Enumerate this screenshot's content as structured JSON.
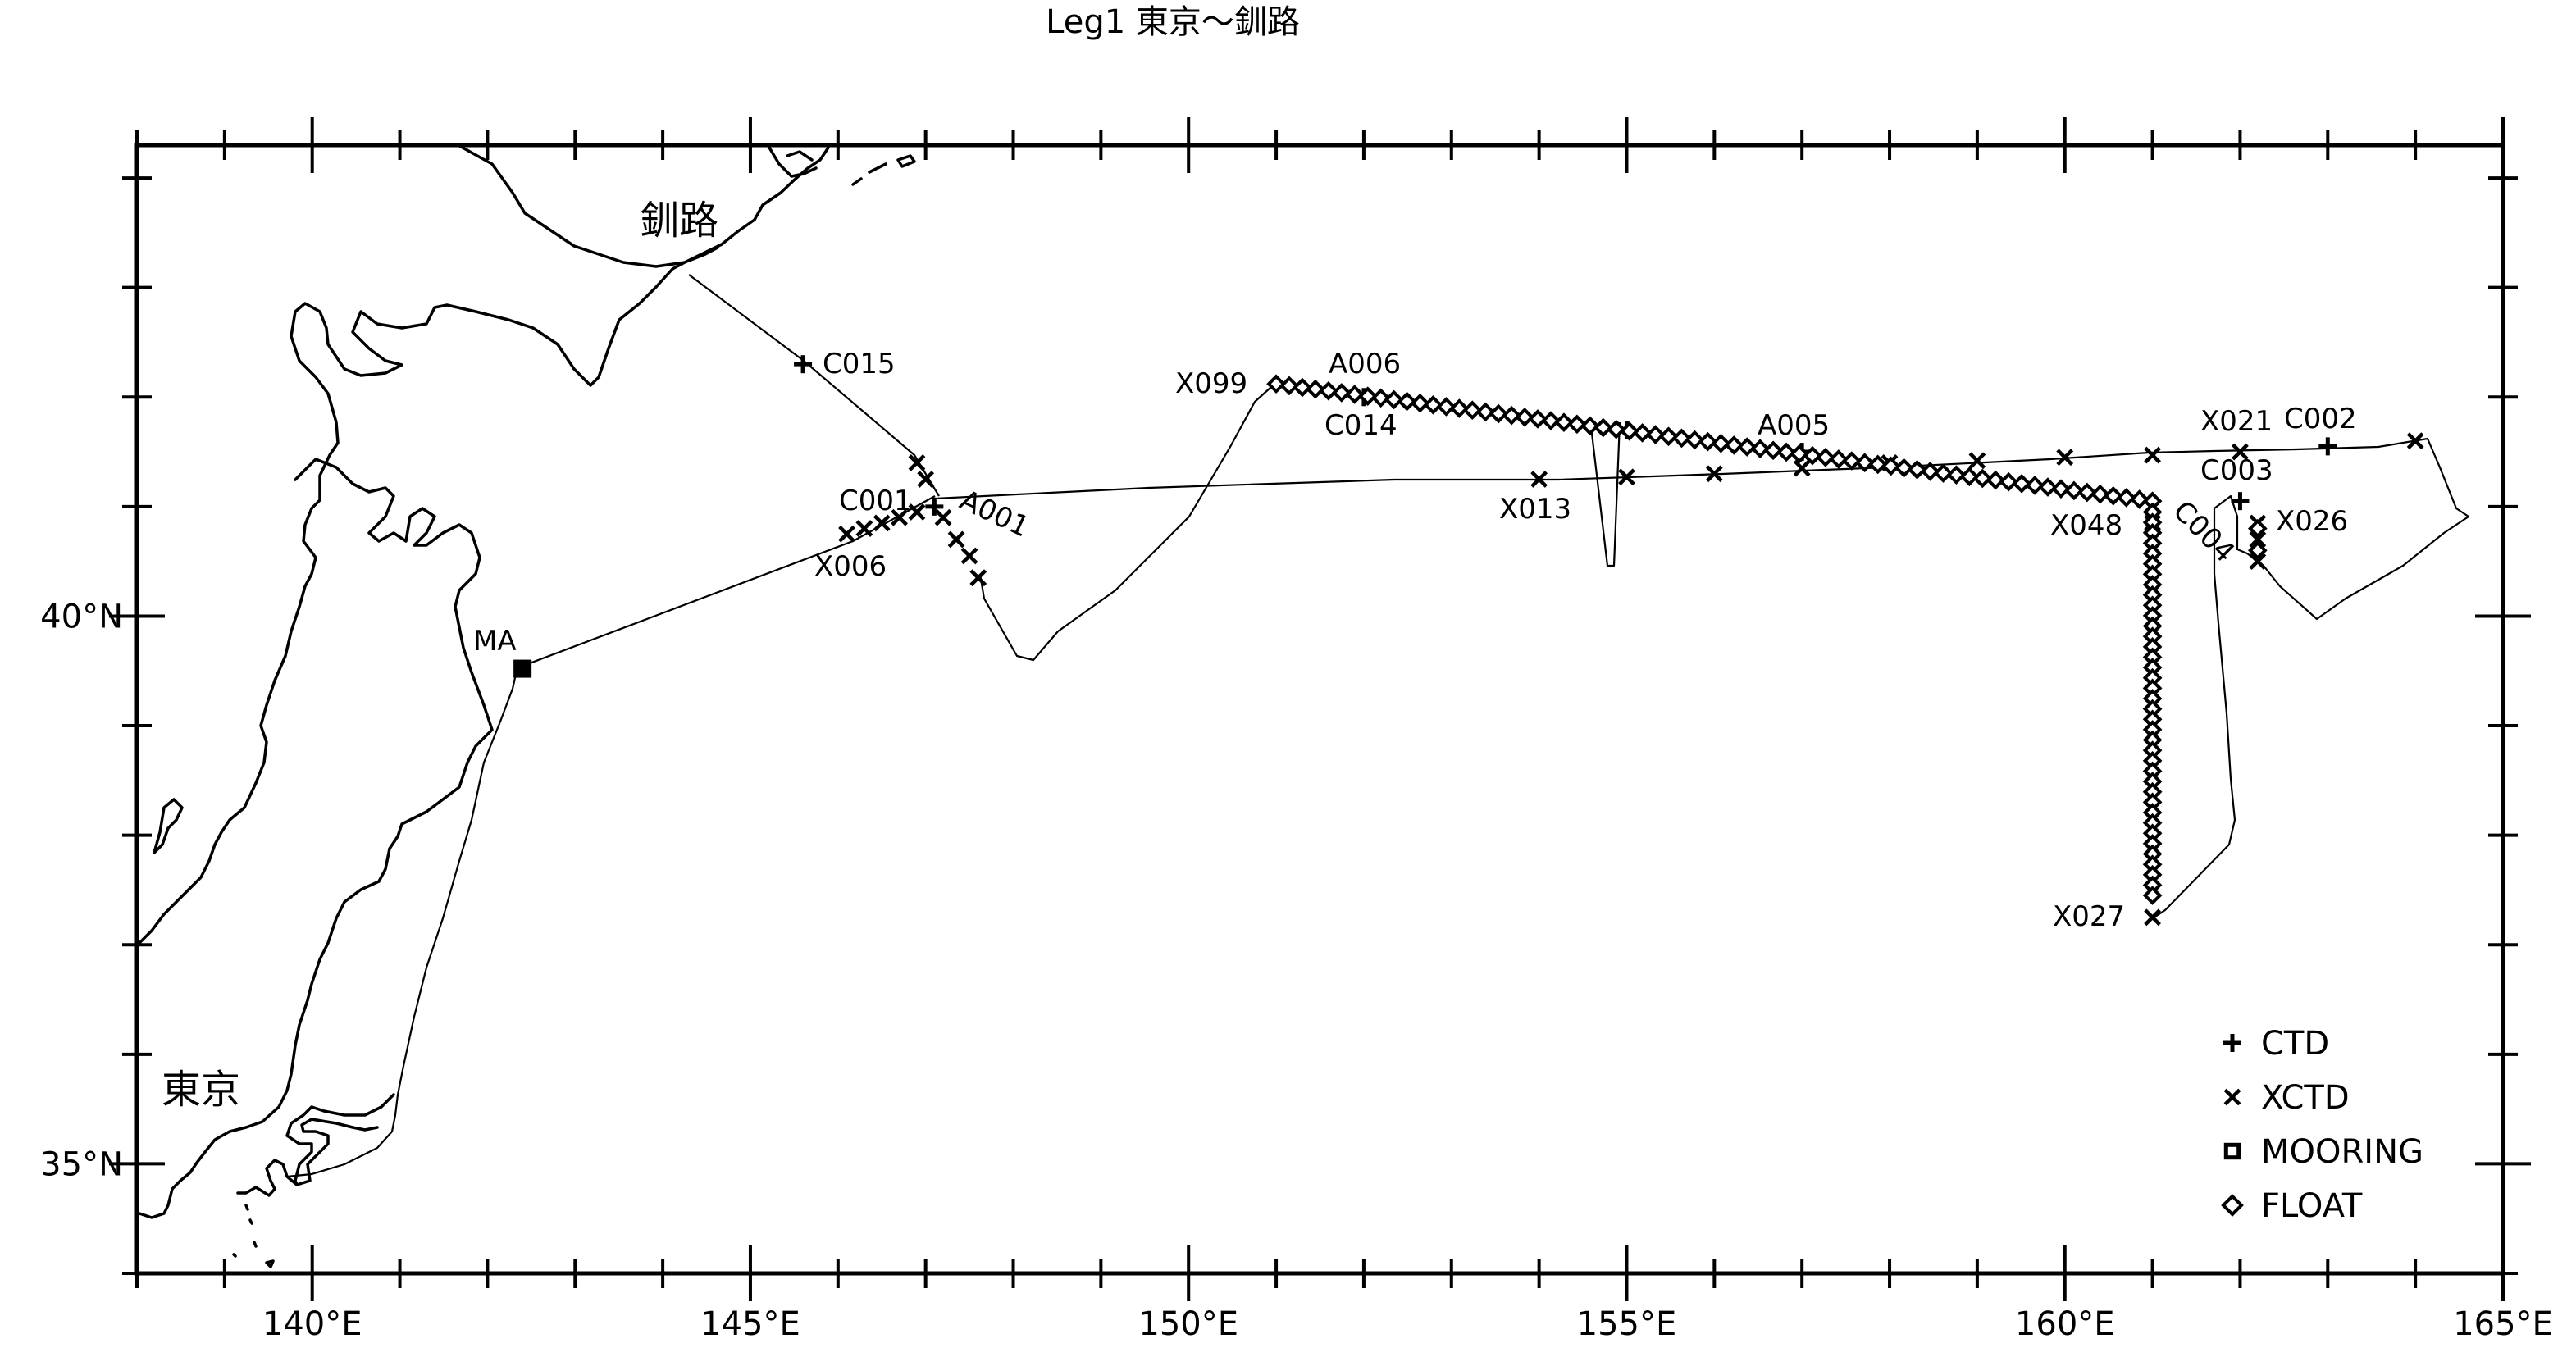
{
  "title": "Leg1 東京〜釧路",
  "place_labels": [
    "釧路",
    "東京"
  ],
  "axes": {
    "lon_range": [
      138,
      165
    ],
    "lat_range": [
      34,
      44.3
    ],
    "x_ticks": [
      "140°E",
      "145°E",
      "150°E",
      "155°E",
      "160°E",
      "165°E"
    ],
    "y_ticks": [
      "35°N",
      "40°N"
    ]
  },
  "legend": {
    "placement": "bottom-right",
    "items": [
      {
        "label": "CTD",
        "symbol": "plus"
      },
      {
        "label": "XCTD",
        "symbol": "cross"
      },
      {
        "label": "MOORING",
        "symbol": "square"
      },
      {
        "label": "FLOAT",
        "symbol": "diamond"
      }
    ]
  },
  "station_labels": [
    "C015",
    "C001",
    "A001",
    "X006",
    "MA",
    "X099",
    "A006",
    "C014",
    "X013",
    "A005",
    "X048",
    "C004",
    "X027",
    "X021",
    "C002",
    "C003",
    "X026"
  ],
  "chart_data": {
    "type": "scatter",
    "title": "Leg1 東京〜釧路",
    "xlabel": "",
    "ylabel": "",
    "xlim": [
      138,
      165
    ],
    "ylim": [
      34,
      44.3
    ],
    "series": [
      {
        "name": "CTD",
        "symbol": "plus",
        "points": [
          [
            145.6,
            42.3
          ],
          [
            147.1,
            41.0
          ],
          [
            152.0,
            42.0
          ],
          [
            155.0,
            41.7
          ],
          [
            157.0,
            41.5
          ],
          [
            162.0,
            41.05
          ],
          [
            163.0,
            41.55
          ]
        ]
      },
      {
        "name": "XCTD",
        "symbol": "cross",
        "points": [
          [
            146.9,
            41.4
          ],
          [
            147.0,
            41.25
          ],
          [
            147.2,
            40.9
          ],
          [
            147.35,
            40.7
          ],
          [
            147.5,
            40.55
          ],
          [
            147.6,
            40.35
          ],
          [
            146.1,
            40.75
          ],
          [
            146.3,
            40.8
          ],
          [
            146.5,
            40.85
          ],
          [
            146.7,
            40.9
          ],
          [
            146.9,
            40.95
          ],
          [
            154.0,
            41.25
          ],
          [
            155.0,
            41.27
          ],
          [
            156.0,
            41.3
          ],
          [
            157.0,
            41.35
          ],
          [
            158.0,
            41.4
          ],
          [
            159.0,
            41.42
          ],
          [
            160.0,
            41.45
          ],
          [
            161.0,
            41.47
          ],
          [
            162.0,
            41.5
          ],
          [
            164.0,
            41.6
          ],
          [
            161.0,
            40.85
          ],
          [
            161.0,
            37.25
          ],
          [
            162.2,
            40.85
          ],
          [
            162.2,
            40.7
          ],
          [
            162.2,
            40.5
          ]
        ]
      },
      {
        "name": "MOORING",
        "symbol": "square",
        "points": [
          [
            142.4,
            39.52
          ]
        ]
      },
      {
        "name": "FLOAT",
        "symbol": "diamond",
        "lines": [
          {
            "from": [
              151.0,
              42.12
            ],
            "to": [
              161.0,
              41.05
            ],
            "count": 68
          },
          {
            "from": [
              161.0,
              40.95
            ],
            "to": [
              161.0,
              37.45
            ],
            "count": 38
          },
          {
            "from": [
              162.2,
              40.8
            ],
            "to": [
              162.2,
              40.6
            ],
            "count": 2
          }
        ]
      }
    ]
  }
}
